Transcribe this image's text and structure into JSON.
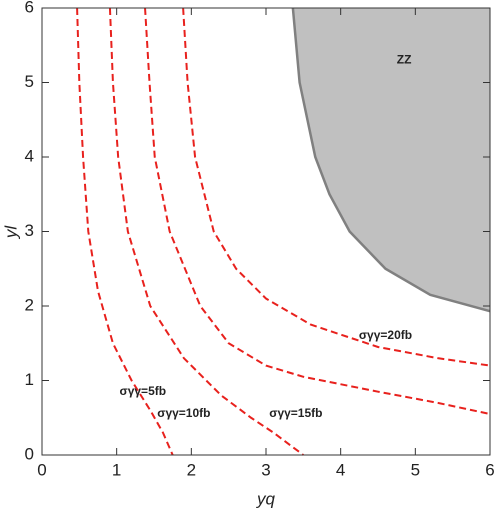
{
  "chart_data": {
    "type": "contour",
    "x_label": "yq",
    "y_label": "yl",
    "xlim": [
      0,
      6
    ],
    "ylim": [
      0,
      6
    ],
    "xticks": [
      0,
      1,
      2,
      3,
      4,
      5,
      6
    ],
    "yticks": [
      0,
      1,
      2,
      3,
      4,
      5,
      6
    ],
    "region": {
      "name": "ZZ",
      "color": "#c0c0c0",
      "edge": "#808080",
      "x": [
        3.36,
        3.45,
        3.66,
        3.85,
        4.12,
        4.6,
        5.2,
        6
      ],
      "y": [
        6,
        5,
        4,
        3.5,
        3,
        2.5,
        2.15,
        1.93
      ]
    },
    "series": [
      {
        "name": "σγγ=5fb",
        "color": "#e8211d",
        "x": [
          0.47,
          0.5,
          0.55,
          0.62,
          0.75,
          0.95,
          1.2,
          1.45,
          1.62,
          1.75
        ],
        "values": [
          6,
          5,
          4,
          3,
          2.2,
          1.5,
          1,
          0.6,
          0.3,
          0
        ]
      },
      {
        "name": "σγγ=10fb",
        "color": "#e8211d",
        "x": [
          0.91,
          0.95,
          1.02,
          1.15,
          1.45,
          1.9,
          2.4,
          2.8,
          3.1,
          3.5
        ],
        "values": [
          6,
          5,
          4,
          3,
          2,
          1.3,
          0.8,
          0.5,
          0.3,
          0
        ]
      },
      {
        "name": "σγγ=15fb",
        "color": "#e8211d",
        "x": [
          1.38,
          1.44,
          1.51,
          1.71,
          2.12,
          2.5,
          3.0,
          3.5,
          4.5,
          5.3,
          6
        ],
        "values": [
          6,
          5,
          4,
          3,
          2,
          1.5,
          1.2,
          1.05,
          0.85,
          0.7,
          0.55
        ]
      },
      {
        "name": "σγγ=20fb",
        "color": "#e8211d",
        "x": [
          1.89,
          1.95,
          2.05,
          2.3,
          2.6,
          3.0,
          3.6,
          4.5,
          5.3,
          6
        ],
        "values": [
          6,
          5,
          4,
          3,
          2.5,
          2.1,
          1.75,
          1.45,
          1.3,
          1.2
        ]
      }
    ]
  }
}
